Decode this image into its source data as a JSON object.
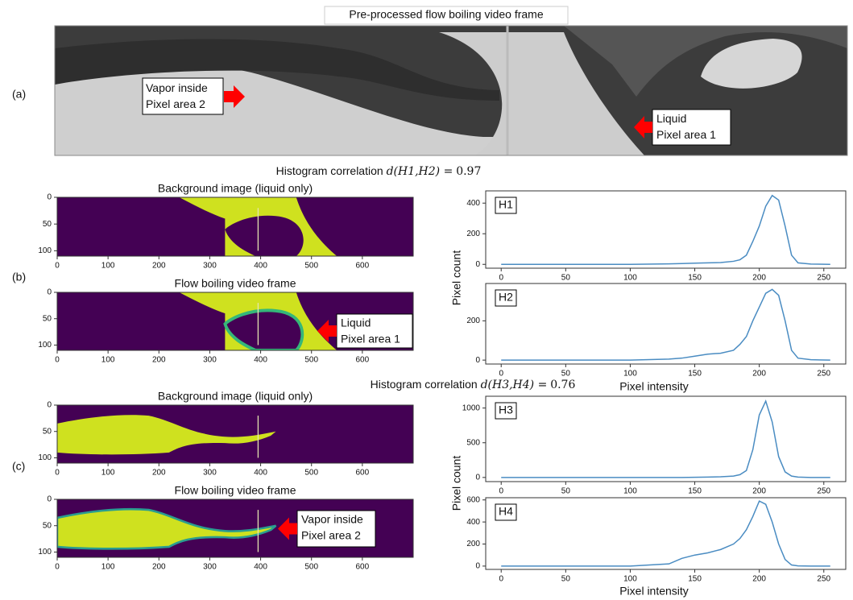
{
  "panel_labels": [
    "(a)",
    "(b)",
    "(c)"
  ],
  "frame": {
    "title": "Pre-processed flow boiling video frame",
    "annotations": [
      {
        "lines": [
          "Vapor inside",
          "Pixel area 2"
        ]
      },
      {
        "lines": [
          "Liquid",
          "Pixel area 1"
        ]
      }
    ]
  },
  "correlations": [
    {
      "label": "Histogram correlation",
      "expression": "d(H1,H2) =",
      "value": 0.97
    },
    {
      "label": "Histogram correlation",
      "expression": "d(H3,H4) =",
      "value": 0.76
    }
  ],
  "chart_data": [
    {
      "type": "image",
      "title": "Background image (liquid only)",
      "xlim": [
        0,
        700
      ],
      "xticks": [
        0,
        100,
        200,
        300,
        400,
        500,
        600
      ],
      "ylim": [
        110,
        0
      ],
      "yticks": [
        0,
        50,
        100
      ]
    },
    {
      "type": "image",
      "title": "Flow boiling video frame",
      "xlim": [
        0,
        700
      ],
      "xticks": [
        0,
        100,
        200,
        300,
        400,
        500,
        600
      ],
      "ylim": [
        110,
        0
      ],
      "yticks": [
        0,
        50,
        100
      ],
      "annotation": [
        "Liquid",
        "Pixel area 1"
      ]
    },
    {
      "type": "line",
      "label": "H1",
      "ylabel": "Pixel count",
      "x": [
        0,
        100,
        130,
        140,
        150,
        160,
        170,
        180,
        185,
        190,
        195,
        200,
        205,
        210,
        215,
        220,
        225,
        230,
        240,
        255
      ],
      "series": [
        {
          "color": "#4a8cc2",
          "values": [
            0,
            0,
            3,
            5,
            8,
            10,
            12,
            20,
            30,
            60,
            150,
            250,
            380,
            450,
            420,
            250,
            60,
            10,
            2,
            0
          ]
        }
      ],
      "xlim": [
        -12,
        267
      ],
      "xticks": [
        0,
        50,
        100,
        150,
        200,
        250
      ],
      "ylim": [
        -25,
        480
      ],
      "yticks": [
        0,
        200,
        400
      ]
    },
    {
      "type": "line",
      "label": "H2",
      "xlabel": "Pixel intensity",
      "x": [
        0,
        100,
        130,
        140,
        150,
        160,
        170,
        180,
        185,
        190,
        195,
        200,
        205,
        210,
        215,
        220,
        225,
        230,
        240,
        255
      ],
      "series": [
        {
          "color": "#4a8cc2",
          "values": [
            0,
            0,
            5,
            10,
            20,
            30,
            35,
            50,
            80,
            120,
            200,
            270,
            340,
            360,
            330,
            200,
            50,
            10,
            2,
            0
          ]
        }
      ],
      "xlim": [
        -12,
        267
      ],
      "xticks": [
        0,
        50,
        100,
        150,
        200,
        250
      ],
      "ylim": [
        -20,
        390
      ],
      "yticks": [
        0,
        200
      ]
    },
    {
      "type": "image",
      "title": "Background image (liquid only)",
      "xlim": [
        0,
        700
      ],
      "xticks": [
        0,
        100,
        200,
        300,
        400,
        500,
        600
      ],
      "ylim": [
        110,
        0
      ],
      "yticks": [
        0,
        50,
        100
      ]
    },
    {
      "type": "image",
      "title": "Flow boiling video frame",
      "xlim": [
        0,
        700
      ],
      "xticks": [
        0,
        100,
        200,
        300,
        400,
        500,
        600
      ],
      "ylim": [
        110,
        0
      ],
      "yticks": [
        0,
        50,
        100
      ],
      "annotation": [
        "Vapor inside",
        "Pixel area 2"
      ]
    },
    {
      "type": "line",
      "label": "H3",
      "ylabel": "Pixel count",
      "x": [
        0,
        100,
        130,
        140,
        150,
        160,
        170,
        180,
        185,
        190,
        195,
        200,
        205,
        210,
        215,
        220,
        225,
        230,
        240,
        255
      ],
      "series": [
        {
          "color": "#4a8cc2",
          "values": [
            0,
            0,
            0,
            0,
            2,
            5,
            10,
            20,
            40,
            100,
            400,
            900,
            1100,
            800,
            300,
            80,
            20,
            5,
            0,
            0
          ]
        }
      ],
      "xlim": [
        -12,
        267
      ],
      "xticks": [
        0,
        50,
        100,
        150,
        200,
        250
      ],
      "ylim": [
        -60,
        1170
      ],
      "yticks": [
        0,
        500,
        1000
      ]
    },
    {
      "type": "line",
      "label": "H4",
      "xlabel": "Pixel intensity",
      "x": [
        0,
        100,
        130,
        140,
        150,
        160,
        170,
        180,
        185,
        190,
        195,
        200,
        205,
        210,
        215,
        220,
        225,
        230,
        240,
        255
      ],
      "series": [
        {
          "color": "#4a8cc2",
          "values": [
            0,
            0,
            20,
            70,
            100,
            120,
            150,
            200,
            250,
            330,
            450,
            590,
            560,
            400,
            200,
            60,
            10,
            2,
            0,
            0
          ]
        }
      ],
      "xlim": [
        -12,
        267
      ],
      "xticks": [
        0,
        50,
        100,
        150,
        200,
        250
      ],
      "ylim": [
        -30,
        620
      ],
      "yticks": [
        0,
        200,
        400,
        600
      ]
    }
  ]
}
